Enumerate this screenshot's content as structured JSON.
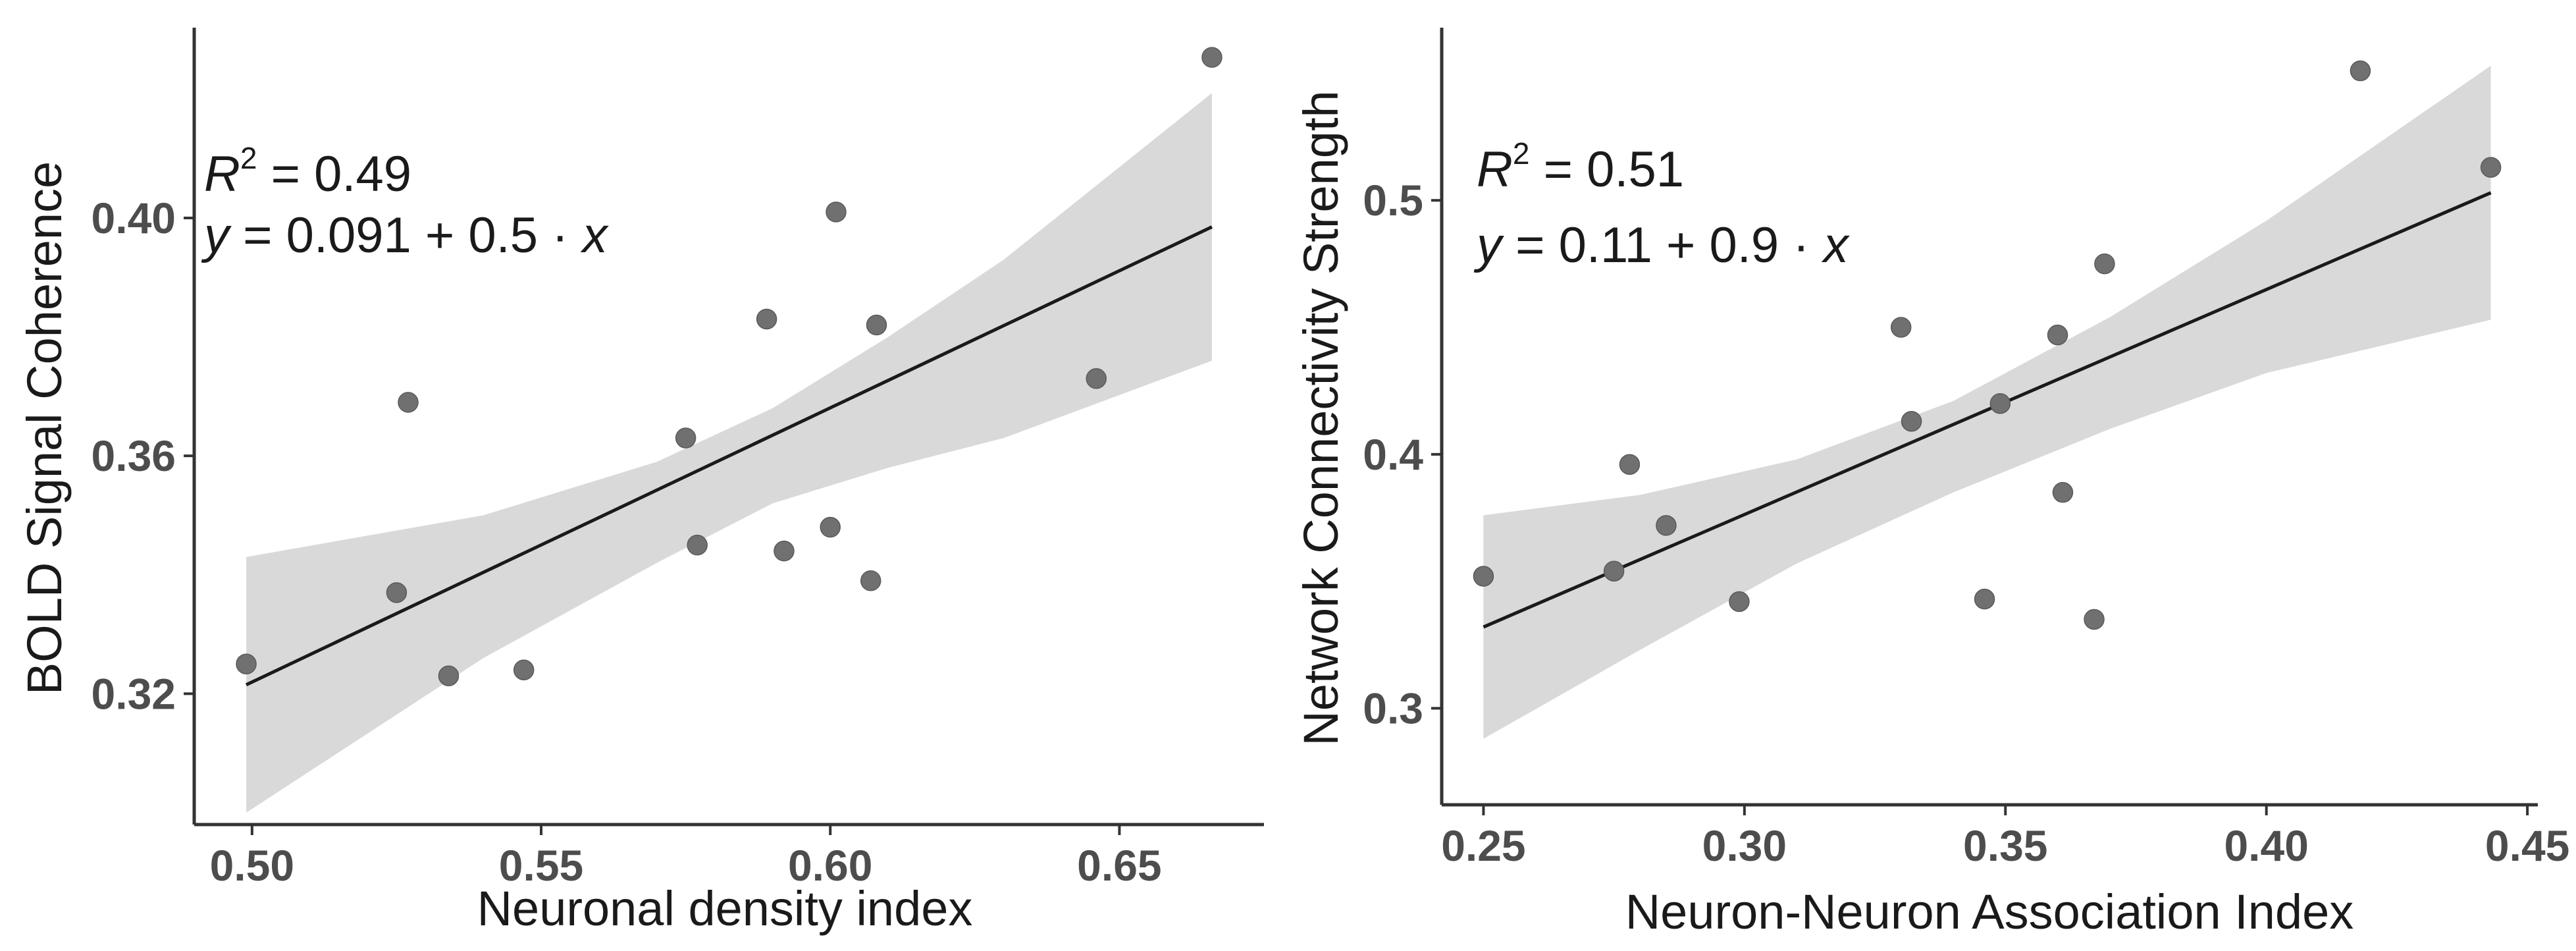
{
  "colors": {
    "band": "#d9d9d9",
    "point": "#707070",
    "line": "#1a1a1a",
    "axis": "#333333",
    "tick_label": "#4d4d4d"
  },
  "chart_data": [
    {
      "type": "scatter",
      "title": "",
      "xlabel": "Neuronal density index",
      "ylabel": "BOLD Signal Coherence",
      "xlim": [
        0.49,
        0.675
      ],
      "ylim": [
        0.298,
        0.432
      ],
      "xticks": [
        0.5,
        0.55,
        0.6,
        0.65
      ],
      "xtick_labels": [
        "0.50",
        "0.55",
        "0.60",
        "0.65"
      ],
      "yticks": [
        0.32,
        0.36,
        0.4
      ],
      "ytick_labels": [
        "0.32",
        "0.36",
        "0.40"
      ],
      "points": [
        {
          "x": 0.499,
          "y": 0.325
        },
        {
          "x": 0.525,
          "y": 0.337
        },
        {
          "x": 0.527,
          "y": 0.369
        },
        {
          "x": 0.534,
          "y": 0.323
        },
        {
          "x": 0.547,
          "y": 0.324
        },
        {
          "x": 0.575,
          "y": 0.363
        },
        {
          "x": 0.577,
          "y": 0.345
        },
        {
          "x": 0.589,
          "y": 0.383
        },
        {
          "x": 0.592,
          "y": 0.344
        },
        {
          "x": 0.6,
          "y": 0.348
        },
        {
          "x": 0.601,
          "y": 0.401
        },
        {
          "x": 0.607,
          "y": 0.339
        },
        {
          "x": 0.608,
          "y": 0.382
        },
        {
          "x": 0.646,
          "y": 0.373
        },
        {
          "x": 0.666,
          "y": 0.427
        }
      ],
      "fit": {
        "x_start": 0.499,
        "y_start": 0.3215,
        "x_end": 0.666,
        "y_end": 0.3985
      },
      "ci_band": {
        "x": [
          0.499,
          0.54,
          0.57,
          0.59,
          0.61,
          0.63,
          0.666
        ],
        "upper": [
          0.343,
          0.35,
          0.359,
          0.368,
          0.38,
          0.393,
          0.421
        ],
        "lower": [
          0.3,
          0.326,
          0.342,
          0.352,
          0.358,
          0.363,
          0.376
        ]
      },
      "annotation": {
        "r2_label": "R",
        "r2_sup": "2",
        "r2_value": " = 0.49",
        "eq_y": "y",
        "eq_body": " = 0.091 + 0.5 · ",
        "eq_x": "x"
      }
    },
    {
      "type": "scatter",
      "title": "",
      "xlabel": "Neuron-Neuron Association Index",
      "ylabel": "Network Connectivity Strength",
      "xlim": [
        0.242,
        0.452
      ],
      "ylim": [
        0.262,
        0.568
      ],
      "xticks": [
        0.25,
        0.3,
        0.35,
        0.4,
        0.45
      ],
      "xtick_labels": [
        "0.25",
        "0.30",
        "0.35",
        "0.40",
        "0.45"
      ],
      "yticks": [
        0.3,
        0.4,
        0.5
      ],
      "ytick_labels": [
        "0.3",
        "0.4",
        "0.5"
      ],
      "points": [
        {
          "x": 0.25,
          "y": 0.352
        },
        {
          "x": 0.275,
          "y": 0.354
        },
        {
          "x": 0.278,
          "y": 0.396
        },
        {
          "x": 0.285,
          "y": 0.372
        },
        {
          "x": 0.299,
          "y": 0.342
        },
        {
          "x": 0.33,
          "y": 0.45
        },
        {
          "x": 0.332,
          "y": 0.413
        },
        {
          "x": 0.346,
          "y": 0.343
        },
        {
          "x": 0.349,
          "y": 0.42
        },
        {
          "x": 0.36,
          "y": 0.447
        },
        {
          "x": 0.361,
          "y": 0.385
        },
        {
          "x": 0.367,
          "y": 0.335
        },
        {
          "x": 0.369,
          "y": 0.475
        },
        {
          "x": 0.418,
          "y": 0.551
        },
        {
          "x": 0.443,
          "y": 0.513
        }
      ],
      "fit": {
        "x_start": 0.25,
        "y_start": 0.332,
        "x_end": 0.443,
        "y_end": 0.503
      },
      "ci_band": {
        "x": [
          0.25,
          0.28,
          0.31,
          0.34,
          0.37,
          0.4,
          0.443
        ],
        "upper": [
          0.376,
          0.384,
          0.398,
          0.421,
          0.454,
          0.492,
          0.553
        ],
        "lower": [
          0.288,
          0.323,
          0.357,
          0.385,
          0.41,
          0.432,
          0.453
        ]
      },
      "annotation": {
        "r2_label": "R",
        "r2_sup": "2",
        "r2_value": " = 0.51",
        "eq_y": "y",
        "eq_body": " = 0.11 + 0.9 · ",
        "eq_x": "x"
      }
    }
  ]
}
